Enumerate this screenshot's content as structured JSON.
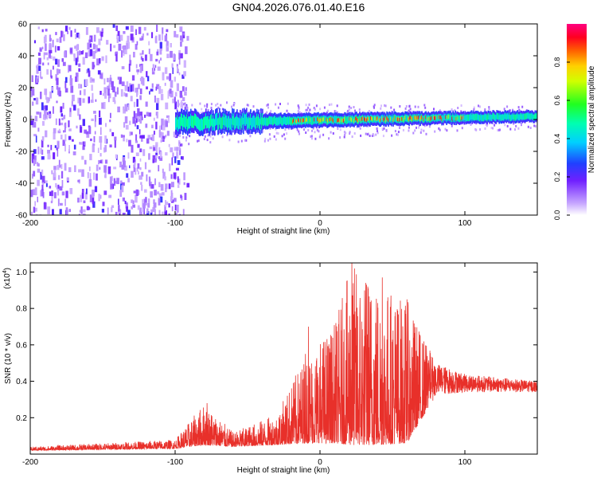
{
  "title": "GN04.2026.076.01.40.E16",
  "chart_data": [
    {
      "type": "heatmap",
      "name": "spectrogram",
      "xlabel": "Height of straight line (km)",
      "ylabel": "Frequency (Hz)",
      "xlim": [
        -200,
        150
      ],
      "ylim": [
        -60,
        60
      ],
      "xticks": [
        -200,
        -100,
        0,
        100
      ],
      "yticks": [
        -60,
        -40,
        -20,
        0,
        20,
        40,
        60
      ],
      "xtick_labels": [
        "-200",
        "-100",
        "0",
        "100"
      ],
      "ytick_labels": [
        "-60",
        "-40",
        "-20",
        "0",
        "20",
        "40",
        "60"
      ],
      "colorbar": {
        "label": "Normalized spectral amplitude",
        "range": [
          0.0,
          1.0
        ],
        "ticks": [
          0.0,
          0.2,
          0.4,
          0.6,
          0.8
        ],
        "tick_labels": [
          "0.0",
          "0.2",
          "0.4",
          "0.6",
          "0.8"
        ]
      },
      "regions": [
        {
          "name": "broadband noise",
          "x_from": -200,
          "x_to": -100,
          "freq_from": -60,
          "freq_to": 60,
          "amplitude": 0.2
        },
        {
          "name": "narrow band",
          "x_from": -100,
          "x_to": 150,
          "center_freq_start": -2,
          "center_freq_end": 2,
          "amplitude_peak": 0.9
        }
      ]
    },
    {
      "type": "line",
      "name": "snr",
      "xlabel": "Height of straight line (km)",
      "ylabel": "SNR (10 * v/v)",
      "y_scale_label": "(x10",
      "y_scale_exponent": "4",
      "y_scale_close": ")",
      "xlim": [
        -200,
        150
      ],
      "ylim": [
        0,
        1.05
      ],
      "xticks": [
        -200,
        -100,
        0,
        100
      ],
      "yticks": [
        0.2,
        0.4,
        0.6,
        0.8,
        1.0
      ],
      "xtick_labels": [
        "-200",
        "-100",
        "0",
        "100"
      ],
      "ytick_labels": [
        "0.2",
        "0.4",
        "0.6",
        "0.8",
        "1.0"
      ],
      "color": "#e8302a",
      "envelope": [
        {
          "x": -200,
          "base": 0.02,
          "peak": 0.04
        },
        {
          "x": -100,
          "base": 0.03,
          "peak": 0.08
        },
        {
          "x": -80,
          "base": 0.05,
          "peak": 0.28
        },
        {
          "x": -60,
          "base": 0.04,
          "peak": 0.12
        },
        {
          "x": -30,
          "base": 0.05,
          "peak": 0.22
        },
        {
          "x": -10,
          "base": 0.06,
          "peak": 0.55
        },
        {
          "x": 10,
          "base": 0.06,
          "peak": 0.72
        },
        {
          "x": 22,
          "base": 0.05,
          "peak": 1.05
        },
        {
          "x": 40,
          "base": 0.05,
          "peak": 0.97
        },
        {
          "x": 60,
          "base": 0.06,
          "peak": 0.85
        },
        {
          "x": 80,
          "base": 0.32,
          "peak": 0.5
        },
        {
          "x": 100,
          "base": 0.34,
          "peak": 0.44
        },
        {
          "x": 150,
          "base": 0.34,
          "peak": 0.4
        }
      ],
      "spikes": [
        {
          "x": -78,
          "y": 0.28
        },
        {
          "x": -10,
          "y": 0.55
        },
        {
          "x": -8,
          "y": 0.7
        },
        {
          "x": 22,
          "y": 1.05
        },
        {
          "x": 33,
          "y": 0.92
        },
        {
          "x": 43,
          "y": 0.97
        },
        {
          "x": 52,
          "y": 0.78
        },
        {
          "x": 60,
          "y": 0.85
        }
      ]
    }
  ]
}
